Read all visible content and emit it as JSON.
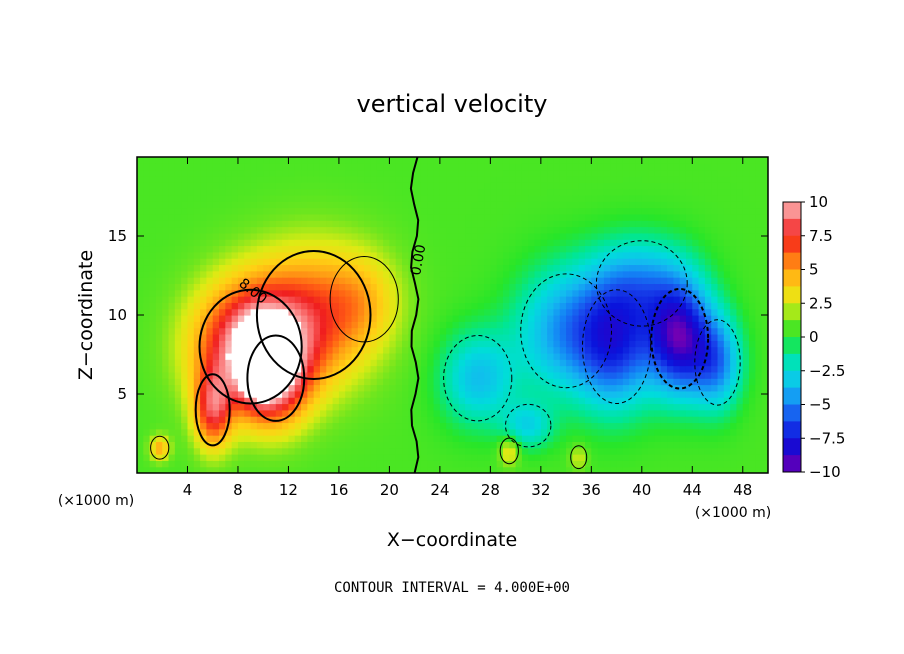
{
  "chart_data": {
    "type": "heatmap",
    "title": "vertical velocity",
    "xlabel": "X−coordinate",
    "ylabel": "Z−coordinate",
    "x_unit_left": "(×1000 m)",
    "x_unit_right": "(×1000 m)",
    "xlim": [
      0,
      50
    ],
    "ylim": [
      0,
      20
    ],
    "x_ticks": [
      "4",
      "8",
      "12",
      "16",
      "20",
      "24",
      "28",
      "32",
      "36",
      "40",
      "44",
      "48"
    ],
    "x_tick_values": [
      4,
      8,
      12,
      16,
      20,
      24,
      28,
      32,
      36,
      40,
      44,
      48
    ],
    "y_ticks": [
      "5",
      "10",
      "15"
    ],
    "y_tick_values": [
      5,
      10,
      15
    ],
    "colorbar": {
      "labels": [
        "10",
        "7.5",
        "5",
        "2.5",
        "0",
        "−2.5",
        "−5",
        "−7.5",
        "−10"
      ],
      "values": [
        10,
        7.5,
        5,
        2.5,
        0,
        -2.5,
        -5,
        -7.5,
        -10
      ],
      "range": [
        -10,
        10
      ]
    },
    "contour_labels": [
      "8.00",
      "0.00"
    ],
    "features": [
      {
        "kind": "updraft",
        "x": 9,
        "z": 8,
        "sx": 4.5,
        "sz": 4,
        "value": 9
      },
      {
        "kind": "updraft",
        "x": 11,
        "z": 6,
        "sx": 2.5,
        "sz": 3,
        "value": 5
      },
      {
        "kind": "updraft",
        "x": 6,
        "z": 4,
        "sx": 1.5,
        "sz": 2.5,
        "value": 6
      },
      {
        "kind": "updraft",
        "x": 14,
        "z": 10,
        "sx": 5,
        "sz": 4.5,
        "value": 5
      },
      {
        "kind": "updraft",
        "x": 18,
        "z": 11,
        "sx": 3,
        "sz": 3,
        "value": 2
      },
      {
        "kind": "updraft",
        "x": 1.8,
        "z": 1.6,
        "sx": 0.8,
        "sz": 0.8,
        "value": 4
      },
      {
        "kind": "updraft",
        "x": 29.5,
        "z": 1.4,
        "sx": 0.8,
        "sz": 0.9,
        "value": 3
      },
      {
        "kind": "updraft",
        "x": 35,
        "z": 1,
        "sx": 0.7,
        "sz": 0.8,
        "value": 2
      },
      {
        "kind": "downdraft",
        "x": 27,
        "z": 6,
        "sx": 3,
        "sz": 3,
        "value": -4
      },
      {
        "kind": "downdraft",
        "x": 34,
        "z": 9,
        "sx": 4,
        "sz": 4,
        "value": -5
      },
      {
        "kind": "downdraft",
        "x": 38,
        "z": 8,
        "sx": 3,
        "sz": 4,
        "value": -6
      },
      {
        "kind": "downdraft",
        "x": 43,
        "z": 8.5,
        "sx": 2.5,
        "sz": 3.5,
        "value": -9
      },
      {
        "kind": "downdraft",
        "x": 40,
        "z": 12,
        "sx": 4,
        "sz": 3,
        "value": -4
      },
      {
        "kind": "downdraft",
        "x": 46,
        "z": 7,
        "sx": 2,
        "sz": 3,
        "value": -5
      },
      {
        "kind": "downdraft",
        "x": 31,
        "z": 3,
        "sx": 2,
        "sz": 1.5,
        "value": -3
      }
    ],
    "contour_interval_text": "CONTOUR INTERVAL = 4.000E+00"
  }
}
